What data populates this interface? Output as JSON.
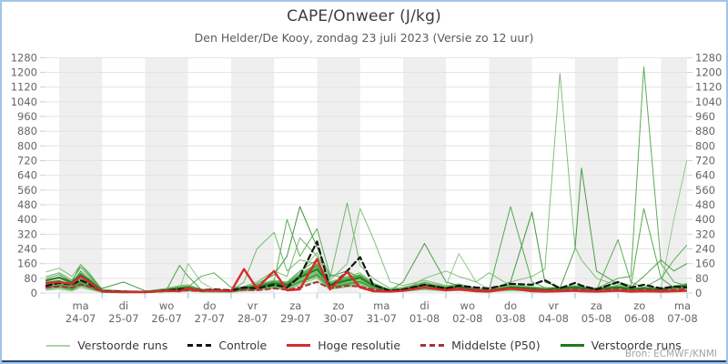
{
  "header": {
    "title": "CAPE/Onweer (J/kg)",
    "subtitle": "Den Helder/De Kooy, zondag 23 juli 2023 (Versie zo 12 uur)"
  },
  "source_note": "Bron: ECMWF/KNMI",
  "legend": [
    {
      "label": "Verstoorde runs",
      "style": "thin-green"
    },
    {
      "label": "Controle",
      "style": "dash-black"
    },
    {
      "label": "Hoge resolutie",
      "style": "red"
    },
    {
      "label": "Middelste (P50)",
      "style": "dash-darkred"
    },
    {
      "label": "Verstoorde runs",
      "style": "dark-green"
    }
  ],
  "colors": {
    "frame_border": "#a5c4e6",
    "frame_bottom": "#26457f",
    "band_gray": "#efefef",
    "gridline": "#e3e3e3",
    "axis_tick_x": "#b9cfe6",
    "axis_tick_y": "#cfcfcf",
    "label_text": "#666666",
    "control": "#141414",
    "hires": "#d62b2b",
    "median": "#a83434",
    "member_palette": [
      "#79bd72",
      "#55a84e",
      "#41993c",
      "#8cc986",
      "#4ea447",
      "#68b461",
      "#379134"
    ],
    "member_dark": "#1b7a1b"
  },
  "chart_data": {
    "type": "line",
    "title": "CAPE/Onweer (J/kg)",
    "ylabel": "J/kg",
    "ylim": [
      0,
      1280
    ],
    "ytick_step": 80,
    "grid": true,
    "legend_position": "bottom",
    "x_axis_note": "15 forecast days, alternating gray band on even days, axis starts ~8h before first day",
    "x_days": [
      {
        "name": "ma",
        "date": "24-07"
      },
      {
        "name": "di",
        "date": "25-07"
      },
      {
        "name": "wo",
        "date": "26-07"
      },
      {
        "name": "do",
        "date": "27-07"
      },
      {
        "name": "vr",
        "date": "28-07"
      },
      {
        "name": "za",
        "date": "29-07"
      },
      {
        "name": "zo",
        "date": "30-07"
      },
      {
        "name": "ma",
        "date": "31-07"
      },
      {
        "name": "di",
        "date": "01-08"
      },
      {
        "name": "wo",
        "date": "02-08"
      },
      {
        "name": "do",
        "date": "03-08"
      },
      {
        "name": "vr",
        "date": "04-08"
      },
      {
        "name": "za",
        "date": "05-08"
      },
      {
        "name": "zo",
        "date": "06-08"
      },
      {
        "name": "ma",
        "date": "07-08"
      }
    ],
    "x_start_day": -0.3175,
    "x_end_day": 14.606,
    "x": [
      -0.3,
      0,
      0.3,
      0.5,
      0.7,
      1,
      1.5,
      2,
      2.5,
      2.8,
      3,
      3.3,
      3.6,
      4,
      4.3,
      4.6,
      5,
      5.3,
      5.6,
      6,
      6.3,
      6.7,
      7,
      7.3,
      7.7,
      8,
      8.5,
      9,
      9.3,
      9.7,
      10,
      10.5,
      11,
      11.3,
      11.65,
      12,
      12.15,
      12.5,
      13,
      13.3,
      13.6,
      14,
      14.3,
      14.6
    ],
    "series": [
      {
        "name": "Controle",
        "values": [
          40,
          55,
          45,
          70,
          50,
          10,
          8,
          5,
          15,
          20,
          25,
          15,
          20,
          15,
          30,
          25,
          45,
          30,
          90,
          280,
          25,
          120,
          195,
          45,
          12,
          20,
          45,
          25,
          40,
          30,
          25,
          50,
          45,
          70,
          25,
          55,
          40,
          20,
          60,
          30,
          45,
          25,
          35,
          30
        ]
      },
      {
        "name": "Hoge resolutie",
        "values": [
          55,
          60,
          50,
          90,
          60,
          8,
          5,
          5,
          12,
          10,
          25,
          12,
          15,
          10,
          130,
          25,
          120,
          15,
          20,
          185,
          20,
          115,
          30,
          10,
          8,
          12,
          30,
          15,
          20,
          10,
          8,
          25,
          10,
          8,
          10,
          12,
          10,
          8,
          12,
          8,
          10,
          8,
          10,
          12
        ]
      },
      {
        "name": "Middelste (P50)",
        "values": [
          30,
          35,
          30,
          45,
          35,
          8,
          5,
          5,
          10,
          12,
          15,
          10,
          12,
          10,
          18,
          15,
          25,
          18,
          30,
          60,
          25,
          40,
          35,
          20,
          12,
          15,
          30,
          20,
          25,
          18,
          15,
          25,
          20,
          18,
          15,
          20,
          18,
          15,
          20,
          15,
          18,
          15,
          18,
          20
        ]
      }
    ],
    "members": [
      [
        60,
        70,
        40,
        90,
        60,
        10,
        5,
        5,
        20,
        30,
        25,
        15,
        10,
        10,
        30,
        40,
        60,
        40,
        80,
        120,
        40,
        60,
        80,
        40,
        20,
        25,
        60,
        30,
        40,
        20,
        15,
        60,
        90,
        130,
        1195,
        250,
        180,
        80,
        40,
        30,
        20,
        15,
        25,
        35
      ],
      [
        40,
        55,
        30,
        70,
        45,
        8,
        5,
        5,
        15,
        20,
        20,
        10,
        8,
        10,
        25,
        30,
        50,
        60,
        120,
        180,
        60,
        80,
        100,
        50,
        15,
        20,
        40,
        25,
        30,
        15,
        10,
        30,
        25,
        20,
        30,
        40,
        35,
        25,
        80,
        90,
        1230,
        160,
        60,
        40
      ],
      [
        30,
        45,
        25,
        60,
        40,
        5,
        8,
        5,
        10,
        15,
        15,
        8,
        10,
        8,
        20,
        25,
        40,
        30,
        60,
        100,
        30,
        50,
        60,
        30,
        10,
        15,
        35,
        20,
        25,
        12,
        10,
        25,
        20,
        15,
        25,
        240,
        680,
        120,
        50,
        30,
        25,
        20,
        30,
        45
      ],
      [
        50,
        60,
        35,
        80,
        50,
        10,
        5,
        8,
        12,
        18,
        20,
        12,
        8,
        12,
        22,
        28,
        45,
        35,
        70,
        110,
        35,
        55,
        70,
        35,
        12,
        18,
        30,
        22,
        28,
        14,
        12,
        28,
        22,
        18,
        28,
        35,
        30,
        22,
        35,
        25,
        30,
        30,
        400,
        720
      ],
      [
        45,
        55,
        30,
        65,
        45,
        8,
        6,
        5,
        15,
        25,
        30,
        15,
        12,
        10,
        25,
        35,
        55,
        45,
        90,
        140,
        45,
        70,
        90,
        45,
        15,
        20,
        50,
        30,
        35,
        18,
        15,
        470,
        60,
        30,
        25,
        30,
        25,
        20,
        30,
        20,
        25,
        18,
        28,
        40
      ],
      [
        55,
        65,
        45,
        85,
        55,
        10,
        8,
        6,
        20,
        30,
        35,
        18,
        15,
        12,
        35,
        60,
        120,
        90,
        300,
        200,
        80,
        490,
        150,
        80,
        25,
        30,
        60,
        35,
        45,
        22,
        18,
        40,
        30,
        25,
        30,
        35,
        30,
        25,
        40,
        25,
        30,
        22,
        35,
        50
      ],
      [
        35,
        50,
        28,
        60,
        40,
        8,
        5,
        6,
        12,
        20,
        25,
        12,
        10,
        10,
        30,
        50,
        100,
        200,
        470,
        250,
        90,
        120,
        80,
        40,
        15,
        20,
        45,
        28,
        32,
        16,
        12,
        30,
        24,
        20,
        28,
        32,
        28,
        22,
        32,
        22,
        26,
        20,
        30,
        42
      ],
      [
        48,
        58,
        32,
        72,
        48,
        9,
        6,
        5,
        14,
        22,
        26,
        14,
        11,
        11,
        28,
        38,
        70,
        55,
        110,
        220,
        70,
        160,
        460,
        300,
        60,
        40,
        70,
        40,
        50,
        25,
        20,
        45,
        35,
        28,
        32,
        38,
        32,
        26,
        38,
        26,
        32,
        24,
        38,
        52
      ],
      [
        42,
        52,
        30,
        66,
        44,
        7,
        5,
        5,
        13,
        21,
        24,
        13,
        10,
        10,
        26,
        36,
        65,
        400,
        200,
        350,
        100,
        80,
        60,
        35,
        12,
        18,
        40,
        26,
        30,
        15,
        12,
        28,
        22,
        18,
        26,
        30,
        26,
        20,
        30,
        20,
        24,
        18,
        28,
        38
      ],
      [
        38,
        48,
        26,
        58,
        38,
        6,
        5,
        5,
        11,
        17,
        20,
        11,
        9,
        9,
        22,
        30,
        50,
        40,
        80,
        130,
        50,
        70,
        80,
        40,
        14,
        60,
        270,
        60,
        40,
        20,
        15,
        32,
        26,
        20,
        28,
        32,
        28,
        22,
        32,
        22,
        26,
        20,
        30,
        40
      ],
      [
        36,
        46,
        24,
        55,
        36,
        6,
        4,
        5,
        10,
        16,
        18,
        10,
        8,
        8,
        20,
        28,
        45,
        35,
        70,
        115,
        40,
        60,
        70,
        35,
        12,
        16,
        55,
        40,
        215,
        60,
        20,
        30,
        24,
        18,
        26,
        30,
        26,
        20,
        30,
        20,
        24,
        18,
        28,
        38
      ],
      [
        34,
        44,
        22,
        52,
        34,
        5,
        4,
        4,
        9,
        15,
        16,
        9,
        7,
        7,
        18,
        26,
        40,
        30,
        60,
        100,
        30,
        50,
        60,
        30,
        10,
        14,
        30,
        18,
        22,
        11,
        9,
        22,
        18,
        14,
        22,
        26,
        22,
        18,
        60,
        40,
        460,
        80,
        30,
        25
      ],
      [
        52,
        62,
        38,
        78,
        52,
        9,
        7,
        6,
        16,
        26,
        30,
        16,
        13,
        13,
        60,
        240,
        330,
        120,
        180,
        160,
        60,
        90,
        110,
        55,
        18,
        24,
        55,
        32,
        38,
        19,
        15,
        35,
        28,
        22,
        30,
        35,
        30,
        24,
        35,
        24,
        28,
        22,
        34,
        46
      ],
      [
        80,
        100,
        60,
        155,
        100,
        15,
        10,
        8,
        20,
        30,
        35,
        18,
        14,
        14,
        30,
        40,
        60,
        50,
        100,
        150,
        50,
        80,
        95,
        48,
        16,
        22,
        48,
        30,
        36,
        18,
        14,
        60,
        440,
        60,
        30,
        34,
        30,
        24,
        34,
        24,
        28,
        22,
        34,
        44
      ],
      [
        115,
        135,
        90,
        155,
        110,
        20,
        12,
        10,
        25,
        40,
        45,
        22,
        16,
        16,
        35,
        45,
        70,
        60,
        110,
        160,
        55,
        85,
        100,
        50,
        18,
        24,
        52,
        32,
        40,
        20,
        16,
        36,
        28,
        24,
        32,
        36,
        32,
        26,
        36,
        26,
        30,
        24,
        36,
        48
      ],
      [
        25,
        35,
        18,
        45,
        28,
        4,
        3,
        4,
        8,
        12,
        14,
        8,
        6,
        6,
        16,
        22,
        35,
        28,
        55,
        90,
        28,
        45,
        55,
        28,
        9,
        12,
        26,
        16,
        20,
        10,
        8,
        18,
        15,
        12,
        18,
        22,
        18,
        15,
        22,
        15,
        18,
        14,
        22,
        30
      ],
      [
        65,
        80,
        50,
        110,
        70,
        12,
        8,
        7,
        18,
        150,
        90,
        20,
        12,
        12,
        28,
        36,
        55,
        45,
        85,
        130,
        45,
        70,
        85,
        42,
        14,
        20,
        44,
        28,
        34,
        17,
        13,
        32,
        26,
        20,
        28,
        32,
        28,
        22,
        32,
        22,
        26,
        20,
        32,
        42
      ],
      [
        30,
        40,
        20,
        50,
        32,
        5,
        4,
        4,
        10,
        20,
        160,
        60,
        20,
        10,
        22,
        30,
        48,
        38,
        75,
        120,
        38,
        60,
        72,
        36,
        12,
        16,
        36,
        22,
        28,
        14,
        11,
        26,
        20,
        16,
        24,
        28,
        24,
        18,
        28,
        18,
        22,
        17,
        26,
        36
      ],
      [
        70,
        85,
        55,
        120,
        78,
        13,
        9,
        8,
        19,
        28,
        32,
        90,
        110,
        30,
        32,
        42,
        62,
        52,
        95,
        145,
        48,
        75,
        90,
        45,
        15,
        21,
        46,
        29,
        36,
        18,
        14,
        34,
        27,
        21,
        29,
        34,
        29,
        23,
        33,
        23,
        27,
        21,
        33,
        43
      ],
      [
        20,
        28,
        15,
        38,
        24,
        3,
        3,
        3,
        7,
        10,
        12,
        7,
        5,
        5,
        14,
        18,
        30,
        24,
        48,
        80,
        24,
        38,
        48,
        24,
        8,
        10,
        22,
        14,
        17,
        9,
        7,
        16,
        13,
        10,
        15,
        18,
        15,
        13,
        19,
        13,
        16,
        12,
        19,
        26
      ],
      [
        55,
        68,
        42,
        95,
        62,
        25,
        60,
        12,
        15,
        24,
        27,
        14,
        11,
        11,
        26,
        34,
        52,
        44,
        82,
        125,
        42,
        66,
        80,
        40,
        13,
        19,
        42,
        26,
        32,
        16,
        13,
        30,
        24,
        19,
        27,
        31,
        27,
        21,
        31,
        21,
        25,
        19,
        31,
        41
      ],
      [
        45,
        56,
        34,
        76,
        50,
        8,
        6,
        6,
        13,
        20,
        23,
        12,
        9,
        9,
        23,
        31,
        47,
        39,
        74,
        115,
        38,
        60,
        72,
        36,
        12,
        17,
        80,
        120,
        90,
        60,
        110,
        40,
        26,
        20,
        28,
        32,
        28,
        22,
        32,
        22,
        26,
        20,
        32,
        42
      ],
      [
        28,
        38,
        20,
        48,
        30,
        5,
        4,
        4,
        9,
        13,
        15,
        9,
        7,
        7,
        17,
        23,
        37,
        30,
        58,
        95,
        30,
        48,
        58,
        29,
        10,
        13,
        28,
        17,
        21,
        11,
        9,
        20,
        16,
        13,
        19,
        23,
        19,
        16,
        290,
        60,
        30,
        80,
        180,
        260
      ],
      [
        32,
        42,
        24,
        54,
        34,
        6,
        5,
        5,
        10,
        15,
        17,
        10,
        8,
        8,
        19,
        25,
        41,
        33,
        64,
        105,
        33,
        52,
        64,
        32,
        11,
        15,
        31,
        19,
        24,
        12,
        10,
        23,
        18,
        15,
        21,
        25,
        21,
        17,
        25,
        30,
        90,
        180,
        120,
        160
      ],
      [
        15,
        22,
        12,
        30,
        19,
        3,
        2,
        3,
        6,
        8,
        10,
        6,
        4,
        4,
        11,
        15,
        25,
        20,
        40,
        65,
        20,
        32,
        40,
        20,
        7,
        9,
        18,
        11,
        14,
        7,
        6,
        13,
        11,
        9,
        12,
        15,
        12,
        11,
        16,
        11,
        13,
        10,
        16,
        22
      ],
      [
        90,
        110,
        70,
        140,
        90,
        16,
        11,
        9,
        22,
        34,
        38,
        20,
        15,
        15,
        32,
        42,
        64,
        54,
        100,
        155,
        52,
        80,
        96,
        48,
        16,
        22,
        50,
        31,
        38,
        19,
        15,
        36,
        29,
        23,
        31,
        36,
        31,
        25,
        36,
        25,
        29,
        23,
        36,
        47
      ]
    ],
    "member_dark_series": [
      70,
      85,
      60,
      100,
      70,
      12,
      8,
      7,
      16,
      24,
      28,
      15,
      12,
      12,
      26,
      34,
      52,
      44,
      85,
      130,
      44,
      68,
      82,
      41,
      14,
      19,
      43,
      27,
      33,
      17,
      13,
      31,
      25,
      20,
      27,
      31,
      27,
      21,
      31,
      21,
      25,
      19,
      30,
      40
    ]
  }
}
